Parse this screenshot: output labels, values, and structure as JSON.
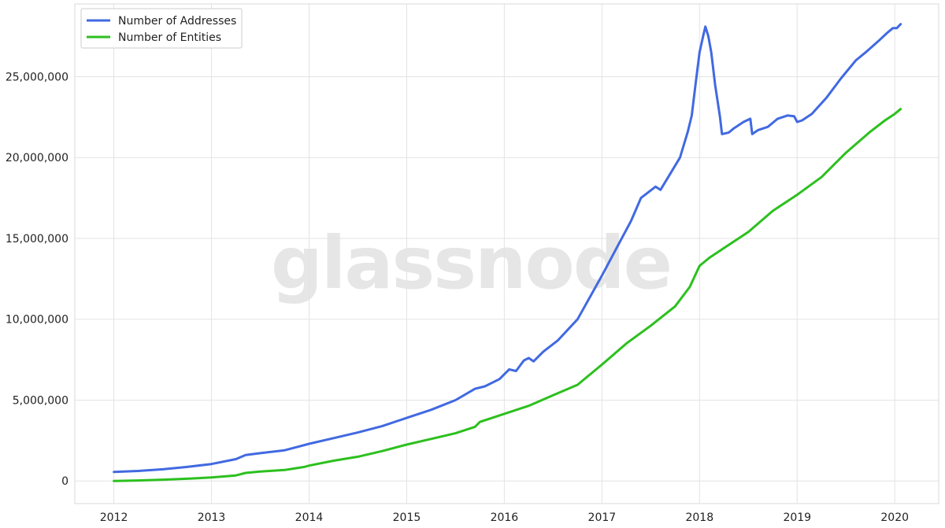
{
  "watermark": "glassnode",
  "chart_data": {
    "type": "line",
    "title": "",
    "xlabel": "",
    "ylabel": "",
    "xlim": [
      2011.6,
      2020.45
    ],
    "ylim": [
      -1400000,
      29500000
    ],
    "x_ticks": [
      2012,
      2013,
      2014,
      2015,
      2016,
      2017,
      2018,
      2019,
      2020
    ],
    "x_tick_labels": [
      "2012",
      "2013",
      "2014",
      "2015",
      "2016",
      "2017",
      "2018",
      "2019",
      "2020"
    ],
    "y_ticks": [
      0,
      5000000,
      10000000,
      15000000,
      20000000,
      25000000
    ],
    "y_tick_labels": [
      "0",
      "5,000,000",
      "10,000,000",
      "15,000,000",
      "20,000,000",
      "25,000,000"
    ],
    "grid": true,
    "legend_position": "top-left",
    "series": [
      {
        "name": "Number of Addresses",
        "color": "#4169e1",
        "points": [
          [
            2012.0,
            560000
          ],
          [
            2012.25,
            620000
          ],
          [
            2012.5,
            720000
          ],
          [
            2012.75,
            870000
          ],
          [
            2013.0,
            1050000
          ],
          [
            2013.25,
            1350000
          ],
          [
            2013.35,
            1600000
          ],
          [
            2013.5,
            1720000
          ],
          [
            2013.75,
            1900000
          ],
          [
            2014.0,
            2300000
          ],
          [
            2014.25,
            2650000
          ],
          [
            2014.5,
            3000000
          ],
          [
            2014.75,
            3400000
          ],
          [
            2015.0,
            3900000
          ],
          [
            2015.25,
            4400000
          ],
          [
            2015.5,
            5000000
          ],
          [
            2015.7,
            5700000
          ],
          [
            2015.8,
            5850000
          ],
          [
            2015.95,
            6300000
          ],
          [
            2016.05,
            6900000
          ],
          [
            2016.12,
            6800000
          ],
          [
            2016.2,
            7450000
          ],
          [
            2016.25,
            7600000
          ],
          [
            2016.3,
            7400000
          ],
          [
            2016.4,
            8000000
          ],
          [
            2016.55,
            8700000
          ],
          [
            2016.75,
            10000000
          ],
          [
            2017.0,
            12700000
          ],
          [
            2017.15,
            14400000
          ],
          [
            2017.3,
            16100000
          ],
          [
            2017.4,
            17500000
          ],
          [
            2017.55,
            18200000
          ],
          [
            2017.6,
            18000000
          ],
          [
            2017.7,
            19000000
          ],
          [
            2017.8,
            20000000
          ],
          [
            2017.88,
            21600000
          ],
          [
            2017.92,
            22600000
          ],
          [
            2017.96,
            24600000
          ],
          [
            2018.0,
            26500000
          ],
          [
            2018.04,
            27600000
          ],
          [
            2018.06,
            28100000
          ],
          [
            2018.09,
            27500000
          ],
          [
            2018.12,
            26500000
          ],
          [
            2018.16,
            24500000
          ],
          [
            2018.21,
            22500000
          ],
          [
            2018.23,
            21450000
          ],
          [
            2018.3,
            21550000
          ],
          [
            2018.35,
            21800000
          ],
          [
            2018.45,
            22200000
          ],
          [
            2018.52,
            22400000
          ],
          [
            2018.54,
            21450000
          ],
          [
            2018.6,
            21700000
          ],
          [
            2018.7,
            21900000
          ],
          [
            2018.8,
            22400000
          ],
          [
            2018.9,
            22600000
          ],
          [
            2018.97,
            22550000
          ],
          [
            2019.0,
            22200000
          ],
          [
            2019.05,
            22300000
          ],
          [
            2019.15,
            22700000
          ],
          [
            2019.3,
            23700000
          ],
          [
            2019.45,
            24900000
          ],
          [
            2019.6,
            26000000
          ],
          [
            2019.7,
            26500000
          ],
          [
            2019.85,
            27300000
          ],
          [
            2019.92,
            27700000
          ],
          [
            2019.98,
            28000000
          ],
          [
            2020.02,
            28000000
          ],
          [
            2020.06,
            28250000
          ]
        ]
      },
      {
        "name": "Number of Entities",
        "color": "#2cc01e",
        "points": [
          [
            2012.0,
            0
          ],
          [
            2012.25,
            30000
          ],
          [
            2012.5,
            80000
          ],
          [
            2012.75,
            140000
          ],
          [
            2013.0,
            220000
          ],
          [
            2013.25,
            340000
          ],
          [
            2013.35,
            500000
          ],
          [
            2013.5,
            580000
          ],
          [
            2013.75,
            680000
          ],
          [
            2013.95,
            870000
          ],
          [
            2014.0,
            950000
          ],
          [
            2014.25,
            1250000
          ],
          [
            2014.5,
            1500000
          ],
          [
            2014.75,
            1850000
          ],
          [
            2015.0,
            2250000
          ],
          [
            2015.25,
            2600000
          ],
          [
            2015.5,
            2950000
          ],
          [
            2015.7,
            3350000
          ],
          [
            2015.75,
            3650000
          ],
          [
            2016.0,
            4150000
          ],
          [
            2016.25,
            4650000
          ],
          [
            2016.5,
            5300000
          ],
          [
            2016.75,
            5950000
          ],
          [
            2017.0,
            7200000
          ],
          [
            2017.25,
            8500000
          ],
          [
            2017.5,
            9600000
          ],
          [
            2017.75,
            10800000
          ],
          [
            2017.9,
            12000000
          ],
          [
            2018.0,
            13300000
          ],
          [
            2018.1,
            13800000
          ],
          [
            2018.25,
            14400000
          ],
          [
            2018.5,
            15400000
          ],
          [
            2018.75,
            16700000
          ],
          [
            2019.0,
            17700000
          ],
          [
            2019.25,
            18800000
          ],
          [
            2019.5,
            20300000
          ],
          [
            2019.75,
            21600000
          ],
          [
            2019.9,
            22300000
          ],
          [
            2020.0,
            22700000
          ],
          [
            2020.06,
            23000000
          ]
        ]
      }
    ]
  }
}
